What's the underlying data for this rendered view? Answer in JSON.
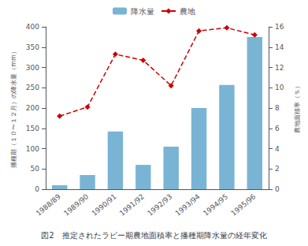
{
  "chart_data": {
    "type": "bar",
    "title": "図2　推定されたラビー期農地面積率と播種期降水量の経年変化",
    "categories": [
      "1988/89",
      "1989/90",
      "1990/91",
      "1991/92",
      "1992/93",
      "1993/94",
      "1994/95",
      "1995/96"
    ],
    "series": [
      {
        "name": "降水量",
        "type": "bar",
        "color": "#7ab4d4",
        "values": [
          10,
          35,
          142,
          60,
          105,
          200,
          257,
          375
        ]
      },
      {
        "name": "農地",
        "type": "line",
        "axis": "y2",
        "color": "#cc0000",
        "marker": "diamond",
        "line_style": "dashed",
        "values": [
          7.2,
          8.1,
          13.3,
          12.7,
          10.2,
          15.6,
          15.9,
          15.2
        ]
      }
    ],
    "ylabel": "播種期（１０〜１２月）の降水量（mm）",
    "y2label": "農地面積率（％）",
    "ylim": [
      0,
      400
    ],
    "yticks": [
      0,
      50,
      100,
      150,
      200,
      250,
      300,
      350,
      400
    ],
    "y2lim": [
      0,
      16
    ],
    "y2ticks": [
      0,
      2,
      4,
      6,
      8,
      10,
      12,
      14,
      16
    ],
    "grid": false,
    "legend": "top"
  }
}
